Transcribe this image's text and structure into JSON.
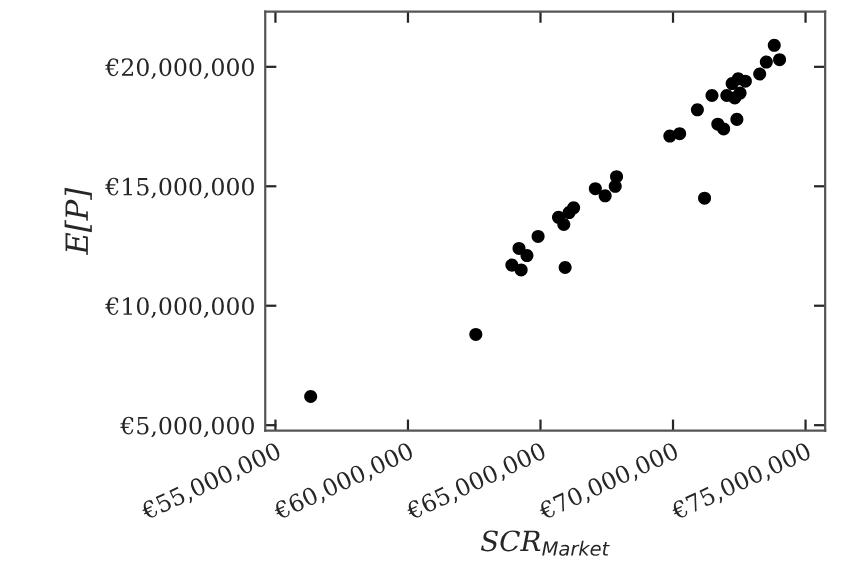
{
  "chart_data": {
    "type": "scatter",
    "xlabel": "SCR$_{Market}$",
    "ylabel": "E[P]",
    "x": [
      56330000,
      62560000,
      63920000,
      64190000,
      64270000,
      64490000,
      64910000,
      65930000,
      65680000,
      65880000,
      66080000,
      66250000,
      67070000,
      67440000,
      67820000,
      67870000,
      69880000,
      70250000,
      70920000,
      71190000,
      71470000,
      71690000,
      71910000,
      72410000,
      72230000,
      72030000,
      72330000,
      72460000,
      72730000,
      73270000,
      73520000,
      73820000,
      74020000,
      72530000
    ],
    "values": [
      6200000,
      8800000,
      11700000,
      12400000,
      11500000,
      12100000,
      12900000,
      11600000,
      13700000,
      13400000,
      13900000,
      14100000,
      14900000,
      14600000,
      15000000,
      15400000,
      17100000,
      17200000,
      18200000,
      14500000,
      18800000,
      17600000,
      17400000,
      17800000,
      19300000,
      18800000,
      18700000,
      19500000,
      19400000,
      19700000,
      20200000,
      20900000,
      20300000,
      18900000
    ],
    "color": "#000000",
    "marker": "circle",
    "grid": false,
    "xlim": [
      54615000,
      75740000
    ],
    "ylim": [
      4770000,
      22310000
    ],
    "xticks": [
      {
        "value": 55000000,
        "label": "€55,000,000"
      },
      {
        "value": 60000000,
        "label": "€60,000,000"
      },
      {
        "value": 65000000,
        "label": "€65,000,000"
      },
      {
        "value": 70000000,
        "label": "€70,000,000"
      },
      {
        "value": 75000000,
        "label": "€75,000,000"
      }
    ],
    "yticks": [
      {
        "value": 5000000,
        "label": "€5,000,000"
      },
      {
        "value": 10000000,
        "label": "€10,000,000"
      },
      {
        "value": 15000000,
        "label": "€15,000,000"
      },
      {
        "value": 20000000,
        "label": "€20,000,000"
      }
    ]
  }
}
